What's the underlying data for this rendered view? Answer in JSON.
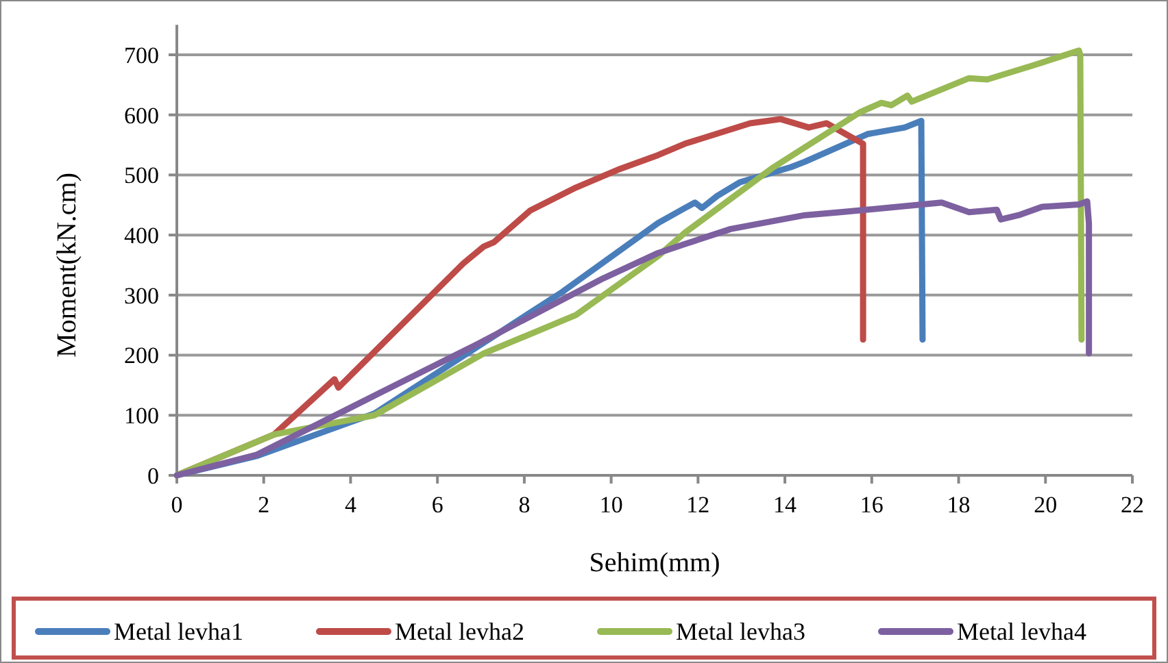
{
  "chart_data": {
    "type": "line",
    "xlabel": "Sehim(mm)",
    "ylabel": "Moment(kN.cm)",
    "xlim": [
      0,
      22
    ],
    "ylim": [
      0,
      750
    ],
    "xticks": [
      0,
      2,
      4,
      6,
      8,
      10,
      12,
      14,
      16,
      18,
      20,
      22
    ],
    "yticks": [
      0,
      100,
      200,
      300,
      400,
      500,
      600,
      700
    ],
    "grid": "y",
    "legend": "bottom",
    "line_style": "solid",
    "series": [
      {
        "name": "Metal levha1",
        "color": "#4a7ebb",
        "x": [
          0,
          1.83,
          4.55,
          7.07,
          8.87,
          11.08,
          11.7,
          11.93,
          12.09,
          12.44,
          12.97,
          14.14,
          14.46,
          15.9,
          16.76,
          17.14,
          17.17
        ],
        "values": [
          0,
          32,
          103,
          221,
          305,
          420,
          445,
          454,
          445,
          465,
          488,
          513,
          522,
          568,
          579,
          590,
          226
        ]
      },
      {
        "name": "Metal levha2",
        "color": "#be4b48",
        "x": [
          0,
          2.24,
          3.63,
          3.72,
          6.6,
          7.07,
          7.3,
          8.14,
          9.19,
          10.2,
          11.08,
          11.7,
          13.2,
          13.9,
          14.55,
          14.96,
          15.4,
          15.8,
          15.8
        ],
        "values": [
          0,
          68,
          160,
          146,
          353,
          381,
          388,
          441,
          479,
          510,
          533,
          552,
          586,
          593,
          579,
          586,
          568,
          552,
          226
        ]
      },
      {
        "name": "Metal levha3",
        "color": "#98b954",
        "x": [
          0,
          2.24,
          4.55,
          7.07,
          9.19,
          11.08,
          11.7,
          13.7,
          15.72,
          16.22,
          16.45,
          16.82,
          16.92,
          18.24,
          18.66,
          19.7,
          20.77,
          20.8,
          20.83
        ],
        "values": [
          0,
          68,
          100,
          203,
          267,
          365,
          404,
          511,
          604,
          620,
          616,
          632,
          622,
          661,
          659,
          682,
          707,
          700,
          226
        ]
      },
      {
        "name": "Metal levha4",
        "color": "#7d60a0",
        "x": [
          0,
          1.83,
          4.67,
          6.88,
          9.82,
          11.08,
          11.7,
          12.75,
          14.46,
          15.28,
          17.61,
          18.24,
          18.88,
          18.97,
          19.38,
          19.92,
          20.77,
          20.96,
          21.0,
          21.0
        ],
        "values": [
          0,
          34,
          137,
          217,
          328,
          370,
          385,
          410,
          433,
          438,
          454,
          438,
          442,
          426,
          433,
          447,
          451,
          456,
          419,
          203
        ]
      }
    ]
  }
}
